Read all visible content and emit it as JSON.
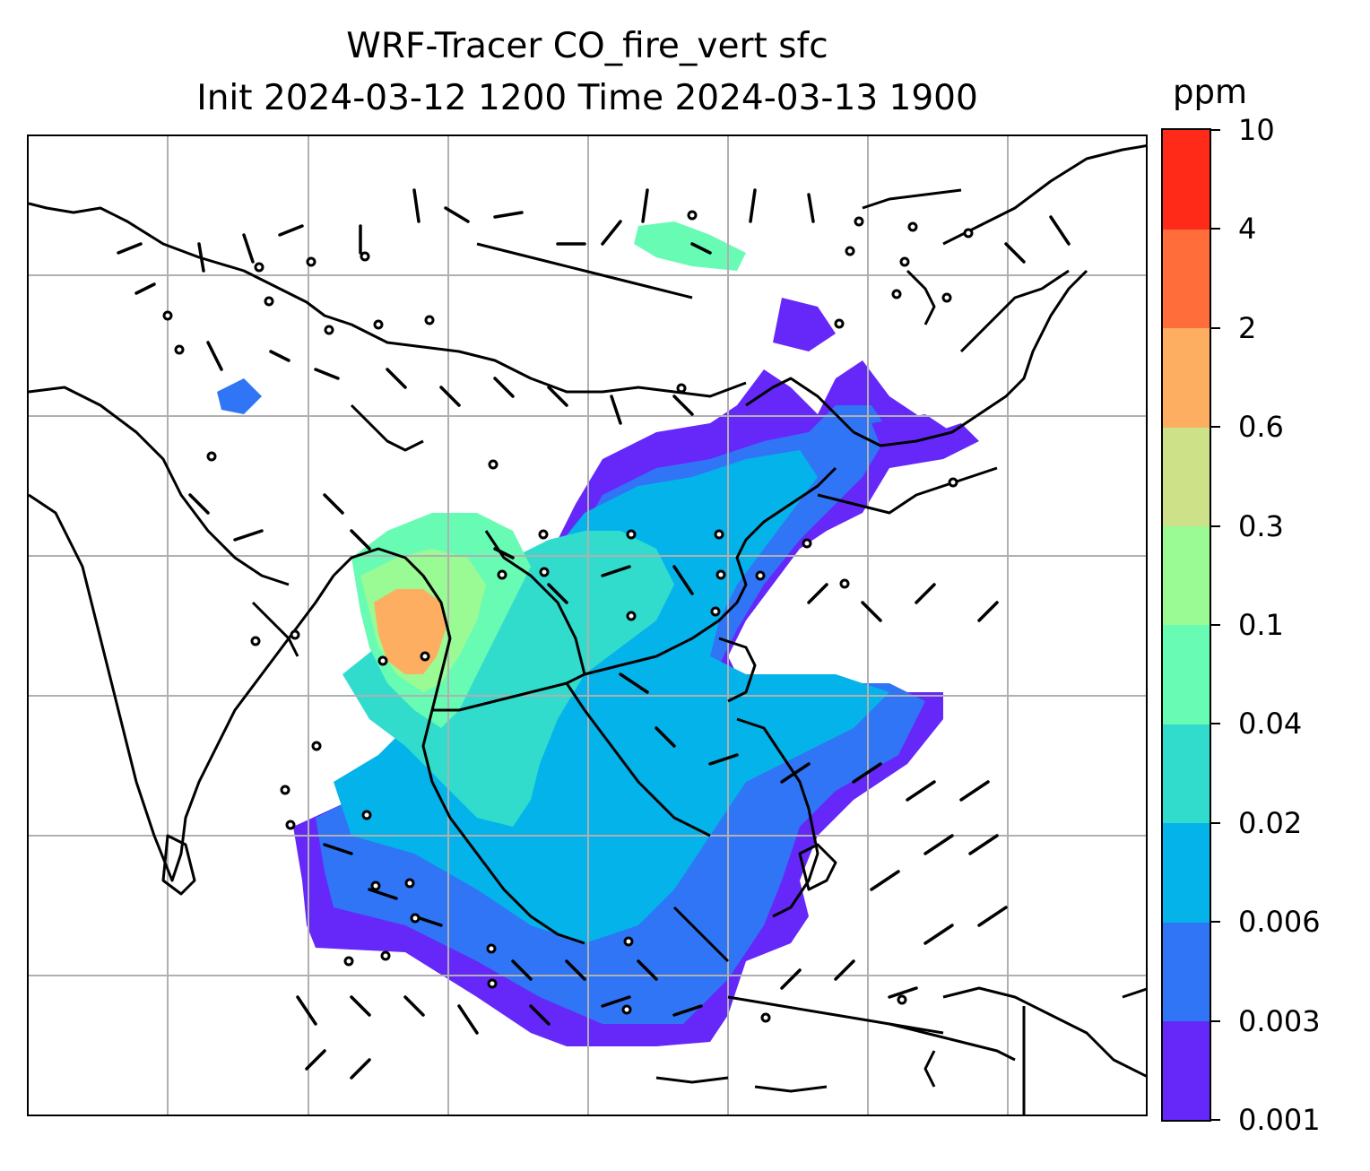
{
  "title": {
    "line1": "WRF-Tracer CO_fire_vert sfc",
    "line2": "Init 2024-03-12 1200 Time 2024-03-13 1900"
  },
  "colorbar": {
    "units": "ppm",
    "levels": [
      "0.001",
      "0.003",
      "0.006",
      "0.02",
      "0.04",
      "0.1",
      "0.3",
      "0.6",
      "2",
      "4",
      "10"
    ],
    "colors": [
      "#6528f9",
      "#3075f6",
      "#04b3ea",
      "#31dccd",
      "#68fbb4",
      "#9afa94",
      "#cde188",
      "#fdae61",
      "#ff6e3a",
      "#ff2a18"
    ]
  },
  "map": {
    "gridlines": true,
    "gridline_color": "#b0b0b0",
    "coastline_color": "#000000",
    "field_description_colors": {
      "lowest": "#6528f9",
      "low": "#3075f6",
      "mid": "#04b3ea",
      "high": "#68fbb4",
      "peak": "#fdae61"
    }
  }
}
